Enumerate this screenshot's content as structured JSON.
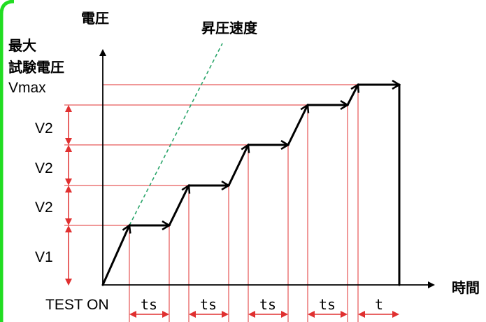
{
  "labels": {
    "y_axis": "電圧",
    "x_axis": "時間",
    "ramp": "昇圧速度",
    "max_line1": "最大",
    "max_line2": "試験電圧",
    "max_line3": "Vmax",
    "test_on": "TEST ON"
  },
  "voltage_steps": [
    "V1",
    "V2",
    "V2",
    "V2"
  ],
  "time_intervals": [
    "ts",
    "ts",
    "ts",
    "ts",
    "t"
  ],
  "colors": {
    "border": "#22dd22",
    "guide": "#e03030",
    "ramp": "#2aa56a",
    "curve": "#000000"
  }
}
